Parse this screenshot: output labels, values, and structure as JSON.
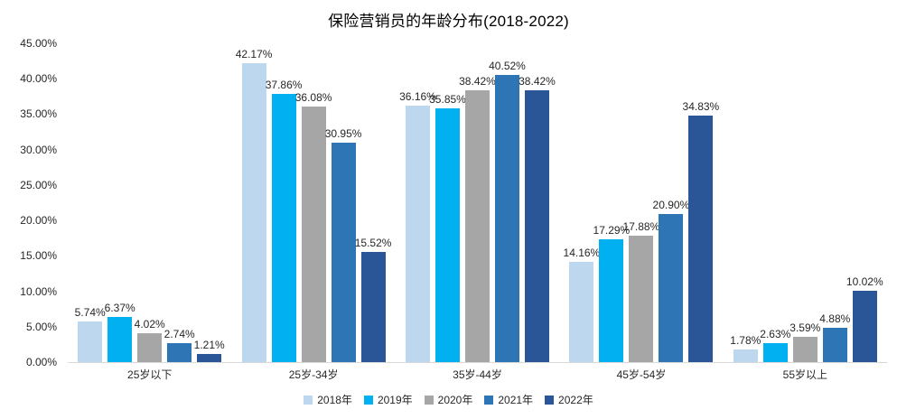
{
  "title": "保险营销员的年龄分布(2018-2022)",
  "chart_data": {
    "type": "bar",
    "title": "保险营销员的年龄分布(2018-2022)",
    "categories": [
      "25岁以下",
      "25岁-34岁",
      "35岁-44岁",
      "45岁-54岁",
      "55岁以上"
    ],
    "series": [
      {
        "name": "2018年",
        "color": "#BDD7EE",
        "values": [
          5.74,
          42.17,
          36.16,
          14.16,
          1.78
        ]
      },
      {
        "name": "2019年",
        "color": "#00B0F0",
        "values": [
          6.37,
          37.86,
          35.85,
          17.29,
          2.63
        ]
      },
      {
        "name": "2020年",
        "color": "#A6A6A6",
        "values": [
          4.02,
          36.08,
          38.42,
          17.88,
          3.59
        ]
      },
      {
        "name": "2021年",
        "color": "#2E75B6",
        "values": [
          2.74,
          30.95,
          40.52,
          20.9,
          4.88
        ]
      },
      {
        "name": "2022年",
        "color": "#2A5596",
        "values": [
          1.21,
          15.52,
          38.42,
          34.83,
          10.02
        ]
      }
    ],
    "xlabel": "",
    "ylabel": "",
    "ylim": [
      0,
      45
    ],
    "ytick_step": 5,
    "ytick_labels": [
      "0.00%",
      "5.00%",
      "10.00%",
      "15.00%",
      "20.00%",
      "25.00%",
      "30.00%",
      "35.00%",
      "40.00%",
      "45.00%"
    ],
    "value_suffix": "%",
    "data_labels": true,
    "grid": false,
    "legend_position": "bottom",
    "legend_labels": [
      "2018年",
      "2019年",
      "2020年",
      "2021年",
      "2022年"
    ]
  },
  "colors": {
    "background": "#FFFFFF",
    "axis_line": "#D9D9D9",
    "text": "#262626",
    "title_text": "#000000"
  }
}
